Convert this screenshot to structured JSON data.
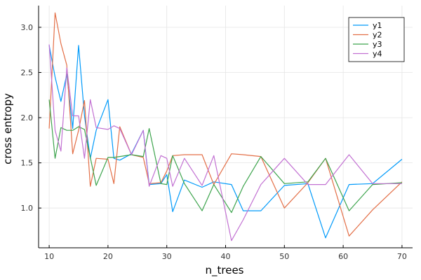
{
  "chart_data": {
    "type": "line",
    "xlabel": "n_trees",
    "ylabel": "cross entropy",
    "xlim": [
      8.2,
      71.8
    ],
    "ylim": [
      0.56,
      3.24
    ],
    "xticks": [
      10,
      20,
      30,
      40,
      50,
      60,
      70
    ],
    "yticks": [
      1.0,
      1.5,
      2.0,
      2.5,
      3.0
    ],
    "xtick_labels": [
      "10",
      "20",
      "30",
      "40",
      "50",
      "60",
      "70"
    ],
    "ytick_labels": [
      "1.0",
      "1.5",
      "2.0",
      "2.5",
      "3.0"
    ],
    "grid": true,
    "legend_position": "top-right",
    "series": [
      {
        "name": "y1",
        "color": "#009AFA",
        "x": [
          10,
          11,
          12,
          13,
          14,
          15,
          16,
          17,
          18,
          20,
          21,
          22,
          24,
          26,
          27,
          29,
          30,
          31,
          33,
          36,
          38,
          41,
          43,
          46,
          50,
          54,
          57,
          61,
          65,
          70
        ],
        "y": [
          2.8,
          2.45,
          2.18,
          2.48,
          1.88,
          2.8,
          2.02,
          1.55,
          1.86,
          2.2,
          1.55,
          1.53,
          1.6,
          1.86,
          1.26,
          1.27,
          1.37,
          0.96,
          1.31,
          1.23,
          1.29,
          1.26,
          0.97,
          0.97,
          1.25,
          1.27,
          0.67,
          1.26,
          1.27,
          1.54
        ]
      },
      {
        "name": "y2",
        "color": "#E36F47",
        "x": [
          10,
          11,
          12,
          13,
          14,
          15,
          16,
          17,
          18,
          20,
          21,
          22,
          24,
          26,
          27,
          29,
          30,
          31,
          33,
          36,
          38,
          41,
          43,
          46,
          50,
          54,
          57,
          61,
          65,
          70
        ],
        "y": [
          1.88,
          3.16,
          2.82,
          2.58,
          1.6,
          1.86,
          2.19,
          1.24,
          1.55,
          1.54,
          1.27,
          1.9,
          1.59,
          1.56,
          1.27,
          1.28,
          1.41,
          1.58,
          1.59,
          1.59,
          1.26,
          1.6,
          1.59,
          1.57,
          1.0,
          1.28,
          1.55,
          0.69,
          0.98,
          1.29
        ]
      },
      {
        "name": "y3",
        "color": "#3DA44D",
        "x": [
          10,
          11,
          12,
          13,
          14,
          15,
          16,
          17,
          18,
          20,
          21,
          22,
          24,
          26,
          27,
          29,
          30,
          31,
          33,
          36,
          38,
          41,
          43,
          46,
          50,
          54,
          57,
          61,
          65,
          70
        ],
        "y": [
          2.2,
          1.55,
          1.89,
          1.86,
          1.86,
          1.9,
          1.87,
          1.56,
          1.25,
          1.56,
          1.56,
          1.57,
          1.59,
          1.57,
          1.88,
          1.27,
          1.26,
          1.58,
          1.27,
          0.97,
          1.26,
          0.95,
          1.24,
          1.57,
          1.27,
          1.29,
          1.55,
          0.97,
          1.26,
          1.28
        ]
      },
      {
        "name": "y4",
        "color": "#C271D2",
        "x": [
          10,
          11,
          12,
          13,
          14,
          15,
          16,
          17,
          18,
          20,
          21,
          22,
          24,
          26,
          27,
          29,
          30,
          31,
          33,
          36,
          38,
          41,
          43,
          46,
          50,
          54,
          57,
          61,
          65,
          70
        ],
        "y": [
          2.81,
          1.86,
          1.63,
          2.55,
          2.02,
          2.02,
          1.55,
          2.2,
          1.89,
          1.87,
          1.91,
          1.88,
          1.59,
          1.86,
          1.24,
          1.58,
          1.55,
          1.24,
          1.55,
          1.25,
          1.58,
          0.64,
          0.87,
          1.26,
          1.55,
          1.26,
          1.26,
          1.59,
          1.27,
          1.27
        ]
      }
    ]
  }
}
